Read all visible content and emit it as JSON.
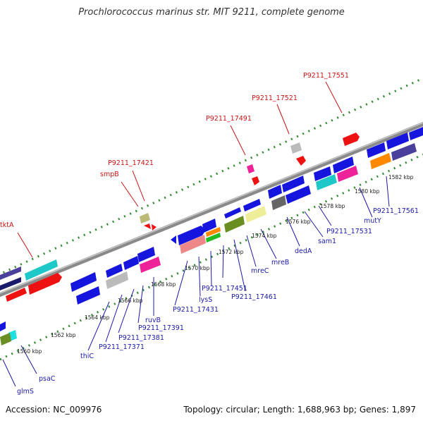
{
  "title": "Prochlorococcus marinus str. MIT 9211, complete genome",
  "footer": {
    "accession": "Accession: NC_009976",
    "summary": "Topology: circular; Length: 1,688,963 bp; Genes: 1,897"
  },
  "colors": {
    "backbone": "#8a8a8a",
    "dots": "#2e8b2e",
    "label_blue": "#1a1aa8",
    "label_red": "#c81414"
  },
  "scale": [
    {
      "text": "1560 kbp",
      "kbp": 1560
    },
    {
      "text": "1562 kbp",
      "kbp": 1562
    },
    {
      "text": "1564 kbp",
      "kbp": 1564
    },
    {
      "text": "1566 kbp",
      "kbp": 1566
    },
    {
      "text": "1568 kbp",
      "kbp": 1568
    },
    {
      "text": "1570 kbp",
      "kbp": 1570
    },
    {
      "text": "1572 kbp",
      "kbp": 1572
    },
    {
      "text": "1574 kbp",
      "kbp": 1574
    },
    {
      "text": "1576 kbp",
      "kbp": 1576
    },
    {
      "text": "1578 kbp",
      "kbp": 1578
    },
    {
      "text": "1580 kbp",
      "kbp": 1580
    },
    {
      "text": "1582 kbp",
      "kbp": 1582
    }
  ],
  "gene_labels": [
    {
      "text": "glmS",
      "color": "blue"
    },
    {
      "text": "psaC",
      "color": "blue"
    },
    {
      "text": "thiC",
      "color": "blue"
    },
    {
      "text": "P9211_17371",
      "color": "blue"
    },
    {
      "text": "P9211_17381",
      "color": "blue"
    },
    {
      "text": "P9211_17391",
      "color": "blue"
    },
    {
      "text": "ruvB",
      "color": "blue"
    },
    {
      "text": "P9211_17431",
      "color": "blue"
    },
    {
      "text": "lysS",
      "color": "blue"
    },
    {
      "text": "P9211_17451",
      "color": "blue"
    },
    {
      "text": "P9211_17461",
      "color": "blue"
    },
    {
      "text": "mreC",
      "color": "blue"
    },
    {
      "text": "mreB",
      "color": "blue"
    },
    {
      "text": "dedA",
      "color": "blue"
    },
    {
      "text": "sam1",
      "color": "blue"
    },
    {
      "text": "P9211_17531",
      "color": "blue"
    },
    {
      "text": "mutY",
      "color": "blue"
    },
    {
      "text": "P9211_17561",
      "color": "blue"
    },
    {
      "text": "tktA",
      "color": "red"
    },
    {
      "text": "smpB",
      "color": "red"
    },
    {
      "text": "P9211_17421",
      "color": "red"
    },
    {
      "text": "P9211_17491",
      "color": "red"
    },
    {
      "text": "P9211_17521",
      "color": "red"
    },
    {
      "text": "P9211_17551",
      "color": "red"
    }
  ]
}
